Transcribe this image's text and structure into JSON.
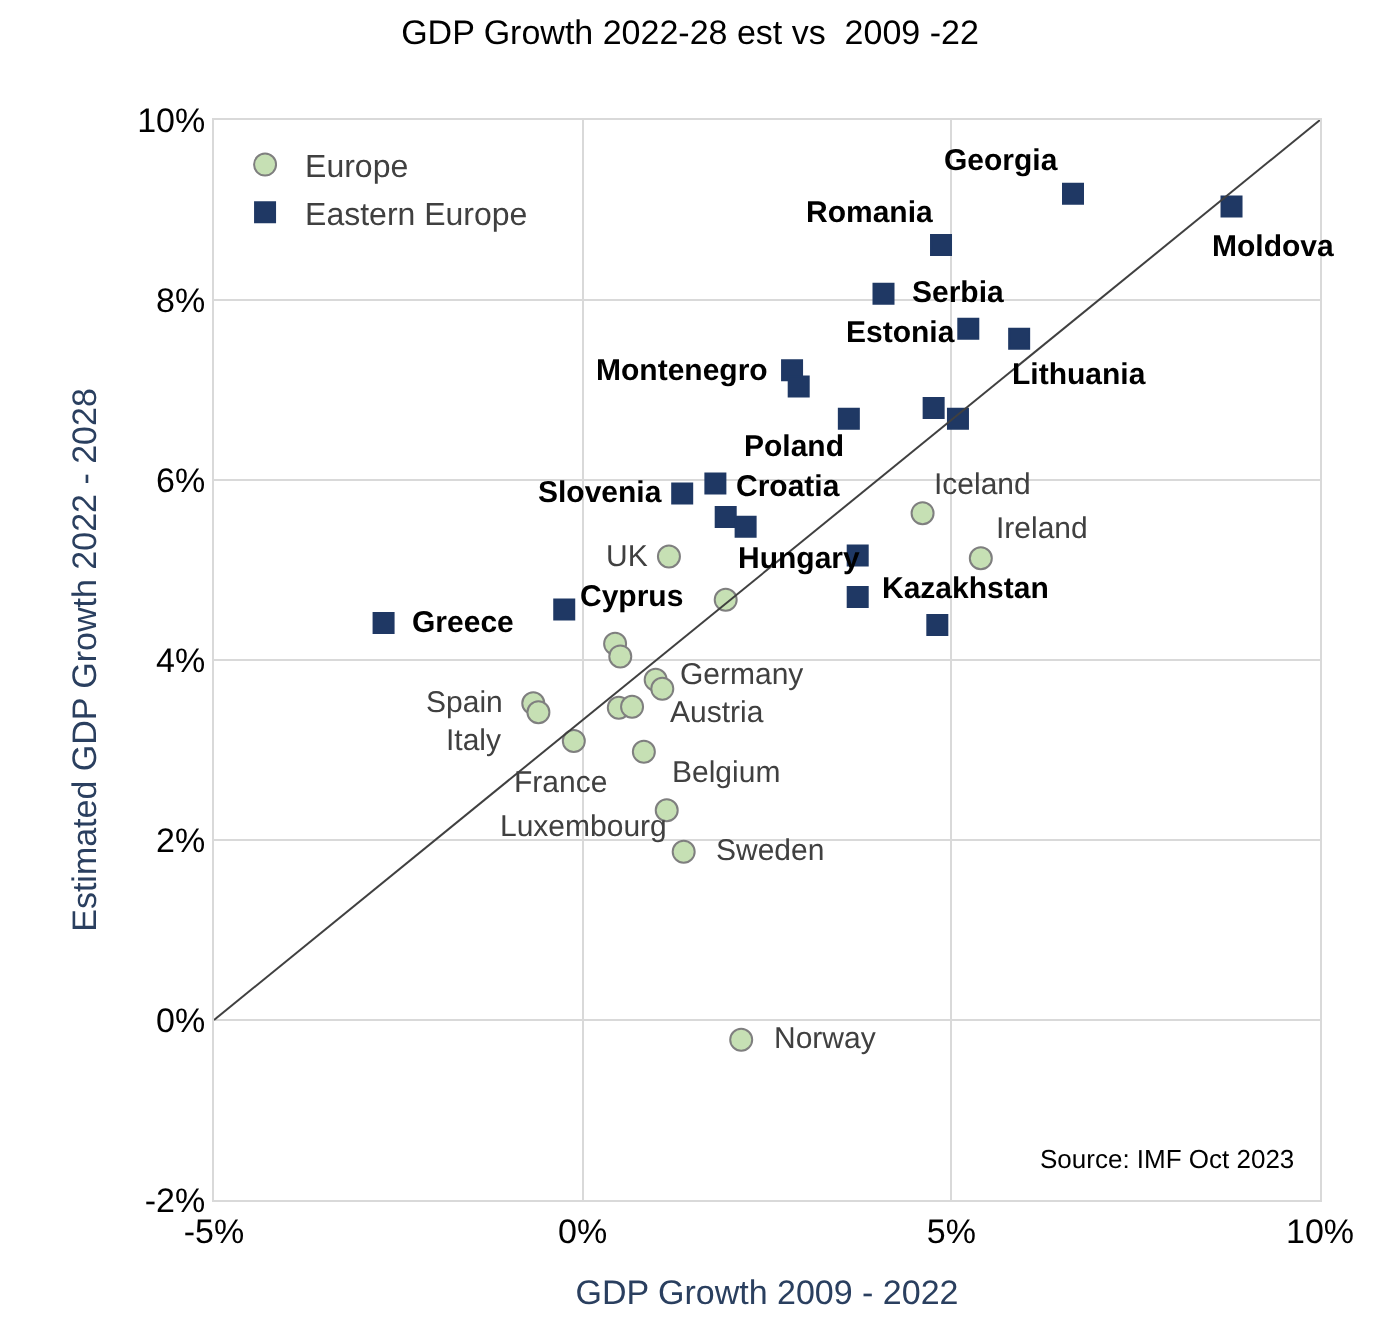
{
  "chart_data": {
    "type": "scatter",
    "title": "GDP Growth 2022-28 est vs  2009 -22",
    "xlabel": "GDP Growth 2009 - 2022",
    "ylabel": "Estimated GDP Growth 2022 - 2028",
    "xlim": [
      -5,
      10
    ],
    "ylim": [
      -2,
      10
    ],
    "xticks": [
      {
        "value": -5,
        "label": "-5%"
      },
      {
        "value": 0,
        "label": "0%"
      },
      {
        "value": 5,
        "label": "5%"
      },
      {
        "value": 10,
        "label": "10%"
      }
    ],
    "yticks": [
      {
        "value": -2,
        "label": "-2%"
      },
      {
        "value": 0,
        "label": "0%"
      },
      {
        "value": 2,
        "label": "2%"
      },
      {
        "value": 4,
        "label": "4%"
      },
      {
        "value": 6,
        "label": "6%"
      },
      {
        "value": 8,
        "label": "8%"
      },
      {
        "value": 10,
        "label": "10%"
      }
    ],
    "grid": true,
    "legend": "top left",
    "series": [
      {
        "name": "Europe",
        "color": "#c6e0b4",
        "marker": "circle",
        "x": [
          1.17,
          1.94,
          0.44,
          0.51,
          4.61,
          5.4,
          0.99,
          1.08,
          -0.67,
          -0.6,
          0.49,
          0.67,
          -0.12,
          0.83,
          1.14,
          1.37,
          2.15
        ],
        "values": [
          5.15,
          4.67,
          4.18,
          4.04,
          5.63,
          5.13,
          3.78,
          3.68,
          3.52,
          3.42,
          3.47,
          3.48,
          3.1,
          2.98,
          2.33,
          1.87,
          -0.22
        ]
      },
      {
        "name": "Eastern Europe",
        "color": "#1f3864",
        "marker": "square",
        "x": [
          -2.7,
          -0.25,
          1.35,
          1.8,
          1.94,
          2.21,
          2.84,
          2.93,
          3.61,
          4.76,
          5.09,
          4.08,
          4.86,
          5.23,
          5.92,
          6.65,
          8.8,
          3.73,
          3.73,
          4.81
        ],
        "values": [
          4.41,
          4.56,
          5.85,
          5.96,
          5.59,
          5.48,
          7.22,
          7.04,
          6.68,
          6.8,
          6.68,
          8.07,
          8.61,
          7.68,
          7.57,
          9.18,
          9.04,
          5.16,
          4.7,
          4.39
        ]
      },
      {
        "type": "line",
        "color": "#404040",
        "marker": "none",
        "x": [
          -5,
          10
        ],
        "values": [
          0,
          10
        ]
      }
    ],
    "annotations": [
      {
        "text": "Georgia",
        "x": 6.65,
        "y": 9.18
      },
      {
        "text": "Moldova",
        "x": 8.8,
        "y": 9.04
      },
      {
        "text": "Romania",
        "x": 4.86,
        "y": 8.61
      },
      {
        "text": "Serbia",
        "x": 4.08,
        "y": 8.07
      },
      {
        "text": "Estonia",
        "x": 5.23,
        "y": 7.68
      },
      {
        "text": "Lithuania",
        "x": 5.92,
        "y": 7.57
      },
      {
        "text": "Montenegro",
        "x": 2.84,
        "y": 7.22
      },
      {
        "text": "Poland",
        "x": 3.61,
        "y": 6.68
      },
      {
        "text": "Slovenia",
        "x": 1.35,
        "y": 5.85
      },
      {
        "text": "Croatia",
        "x": 1.8,
        "y": 5.96
      },
      {
        "text": "Hungary",
        "x": 3.73,
        "y": 5.16
      },
      {
        "text": "Kazakhstan",
        "x": 3.73,
        "y": 4.7
      },
      {
        "text": "Greece",
        "x": -2.7,
        "y": 4.41
      },
      {
        "text": "Cyprus",
        "x": -0.25,
        "y": 4.56
      },
      {
        "text": "UK",
        "x": 1.17,
        "y": 5.15
      },
      {
        "text": "Iceland",
        "x": 4.61,
        "y": 5.63
      },
      {
        "text": "Ireland",
        "x": 5.4,
        "y": 5.13
      },
      {
        "text": "Germany",
        "x": 0.99,
        "y": 3.78
      },
      {
        "text": "Austria",
        "x": 1.08,
        "y": 3.68
      },
      {
        "text": "Spain",
        "x": -0.67,
        "y": 3.52
      },
      {
        "text": "Italy",
        "x": -0.6,
        "y": 3.42
      },
      {
        "text": "France",
        "x": -0.12,
        "y": 3.1
      },
      {
        "text": "Belgium",
        "x": 0.83,
        "y": 2.98
      },
      {
        "text": "Luxembourg",
        "x": 1.14,
        "y": 2.33
      },
      {
        "text": "Sweden",
        "x": 1.37,
        "y": 1.87
      },
      {
        "text": "Norway",
        "x": 2.15,
        "y": -0.22
      },
      "Source: IMF Oct 2023"
    ]
  }
}
